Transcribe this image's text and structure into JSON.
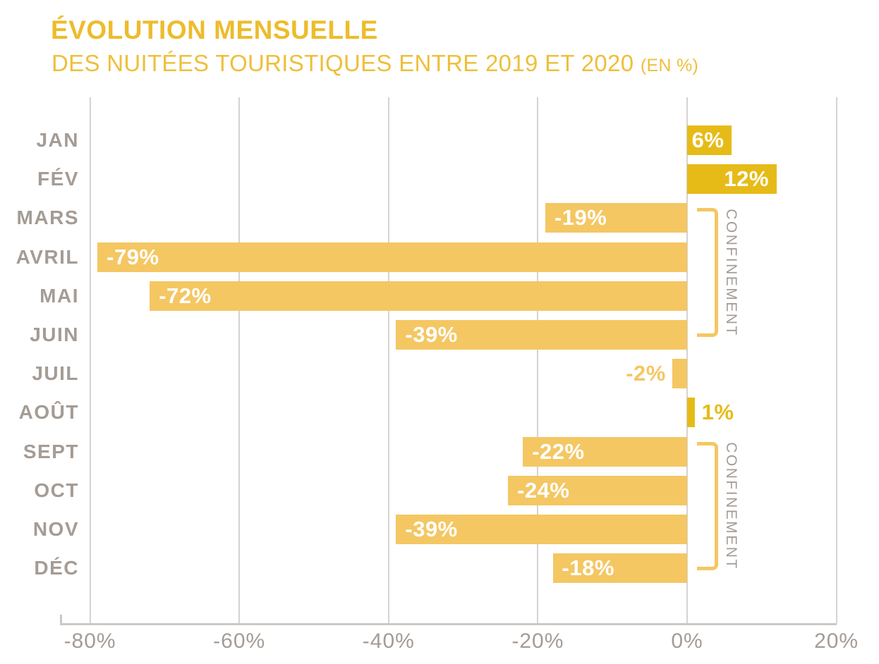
{
  "header": {
    "title": "ÉVOLUTION MENSUELLE",
    "subtitle": "DES NUITÉES TOURISTIQUES ENTRE 2019 ET 2020",
    "subtitle_note": "(EN %)"
  },
  "chart_data": {
    "type": "bar",
    "orientation": "horizontal",
    "title": "ÉVOLUTION MENSUELLE DES NUITÉES TOURISTIQUES ENTRE 2019 ET 2020 (EN %)",
    "categories": [
      "JAN",
      "FÉV",
      "MARS",
      "AVRIL",
      "MAI",
      "JUIN",
      "JUIL",
      "AOÛT",
      "SEPT",
      "OCT",
      "NOV",
      "DÉC"
    ],
    "values": [
      6,
      12,
      -19,
      -79,
      -72,
      -39,
      -2,
      1,
      -22,
      -24,
      -39,
      -18
    ],
    "value_labels": [
      "6%",
      "12%",
      "-19%",
      "-79%",
      "-72%",
      "-39%",
      "-2%",
      "1%",
      "-22%",
      "-24%",
      "-39%",
      "-18%"
    ],
    "x_ticks": [
      -80,
      -60,
      -40,
      -20,
      0,
      20
    ],
    "x_tick_labels": [
      "-80%",
      "-60%",
      "-40%",
      "-20%",
      "0%",
      "20%"
    ],
    "xlim": [
      -84,
      20
    ],
    "grid": true,
    "legend": null,
    "annotations": [
      {
        "label": "CONFINEMENT",
        "from": "MARS",
        "to": "JUIN"
      },
      {
        "label": "CONFINEMENT",
        "from": "SEPT",
        "to": "DÉC"
      }
    ]
  },
  "colors": {
    "title": "#edbc2d",
    "positive_bar": "#e6bb18",
    "negative_bar": "#f4c763",
    "bar_label_inside": "#ffffff",
    "axis_text": "#a49c95",
    "gridline": "#d6d3d0",
    "axis_line": "#cbc7c3",
    "bracket": "#f4c763",
    "background": "#ffffff"
  }
}
